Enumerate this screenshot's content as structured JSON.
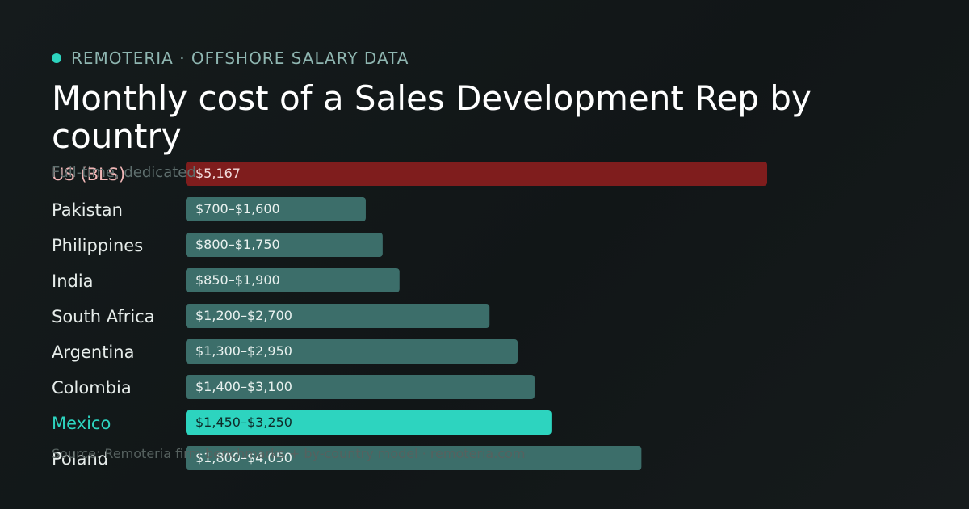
{
  "header": {
    "brand": "REMOTERIA · OFFSHORE SALARY DATA",
    "title": "Monthly cost of a Sales Development Rep by country",
    "subtitle": "Full-time, dedicated",
    "source": "Source: Remoteria firm benchmarks + by-country model · remoteria.com"
  },
  "colors": {
    "accent": "#2dd4bf",
    "us_bar": "#7f1d1d",
    "default_bar": "#3c6e6a",
    "label_default": "#e6ecea",
    "label_us": "#f2b7b7",
    "brand": "#8fb6b1"
  },
  "chart_data": {
    "type": "bar",
    "orientation": "horizontal",
    "title": "Monthly cost of a Sales Development Rep by country",
    "xlabel": "",
    "ylabel": "",
    "unit": "USD per month",
    "xlim": [
      0,
      5167
    ],
    "grid": false,
    "categories": [
      "US (BLS)",
      "Pakistan",
      "Philippines",
      "India",
      "South Africa",
      "Argentina",
      "Colombia",
      "Mexico",
      "Poland"
    ],
    "ranges": [
      [
        5167,
        5167
      ],
      [
        700,
        1600
      ],
      [
        800,
        1750
      ],
      [
        850,
        1900
      ],
      [
        1200,
        2700
      ],
      [
        1300,
        2950
      ],
      [
        1400,
        3100
      ],
      [
        1450,
        3250
      ],
      [
        1800,
        4050
      ]
    ],
    "value_labels": [
      "$5,167",
      "$700–$1,600",
      "$800–$1,750",
      "$850–$1,900",
      "$1,200–$2,700",
      "$1,300–$2,950",
      "$1,400–$3,100",
      "$1,450–$3,250",
      "$1,800–$4,050"
    ],
    "highlight": "Mexico",
    "baseline": "US (BLS)"
  }
}
